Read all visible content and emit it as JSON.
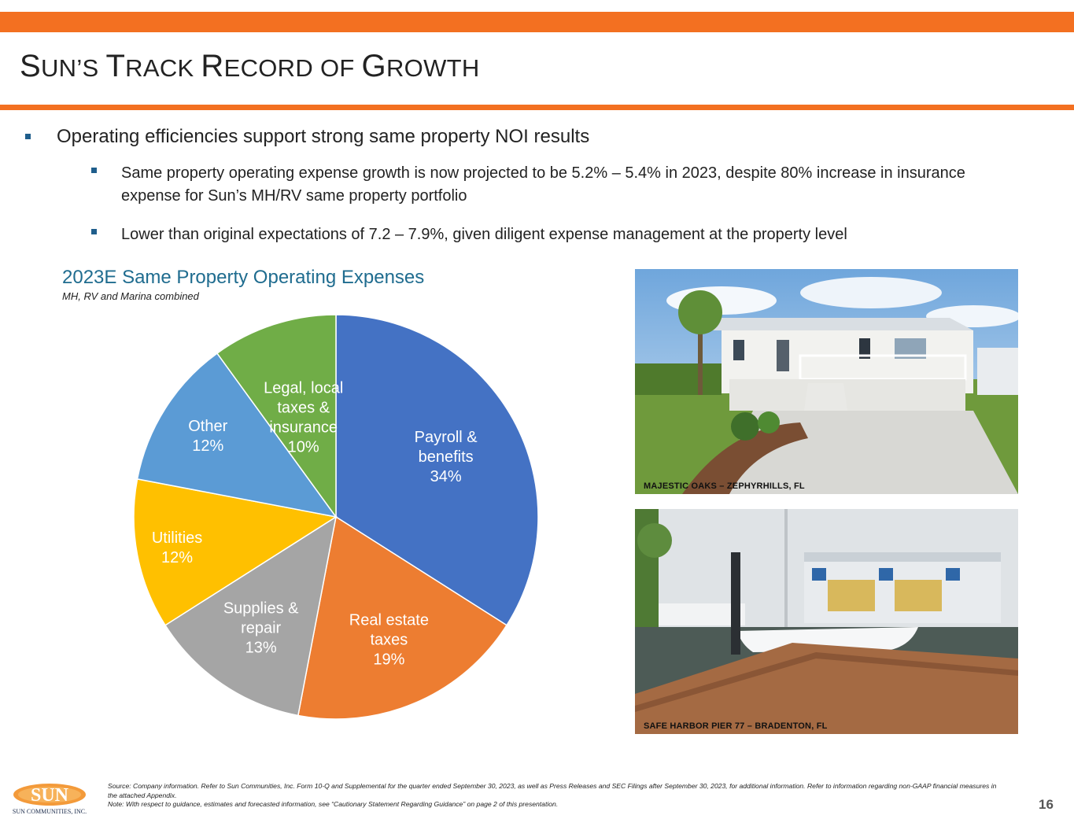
{
  "header": {
    "title_parts": [
      {
        "text": "S",
        "size": "cap"
      },
      {
        "text": "UN’S ",
        "size": "sm"
      },
      {
        "text": "T",
        "size": "cap"
      },
      {
        "text": "RACK ",
        "size": "sm"
      },
      {
        "text": "R",
        "size": "cap"
      },
      {
        "text": "ECORD OF ",
        "size": "sm"
      },
      {
        "text": "G",
        "size": "cap"
      },
      {
        "text": "ROWTH",
        "size": "sm"
      }
    ]
  },
  "bullets": {
    "main": "Operating efficiencies support strong same property NOI results",
    "sub1": "Same property operating expense growth is now projected to be 5.2% – 5.4% in 2023, despite 80% increase in insurance expense for Sun’s MH/RV same property portfolio",
    "sub2": "Lower than original expectations of 7.2 – 7.9%, given diligent expense management at the property level"
  },
  "chart_data": {
    "type": "pie",
    "title": "2023E Same Property Operating Expenses",
    "subtitle": "MH, RV and Marina combined",
    "slices": [
      {
        "label": [
          "Payroll &",
          "benefits",
          "34%"
        ],
        "value": 34,
        "color": "#4472c4"
      },
      {
        "label": [
          "Real estate",
          "taxes",
          "19%"
        ],
        "value": 19,
        "color": "#ed7d31"
      },
      {
        "label": [
          "Supplies &",
          "repair",
          "13%"
        ],
        "value": 13,
        "color": "#a5a5a5"
      },
      {
        "label": [
          "Utilities",
          "12%"
        ],
        "value": 12,
        "color": "#ffc000"
      },
      {
        "label": [
          "Other",
          "12%"
        ],
        "value": 12,
        "color": "#5b9bd5"
      },
      {
        "label": [
          "Legal, local",
          "taxes &",
          "insurance",
          "10%"
        ],
        "value": 10,
        "color": "#70ad47"
      }
    ]
  },
  "photos": {
    "photo1_caption": "MAJESTIC OAKS – ZEPHYRHILLS, FL",
    "photo2_caption": "SAFE HARBOR PIER 77 – BRADENTON, FL"
  },
  "footer": {
    "logo_text": "SUN",
    "logo_subtext": "SUN COMMUNITIES, INC.",
    "source": "Source: Company information. Refer to Sun Communities, Inc. Form 10-Q and Supplemental for the quarter ended September 30, 2023, as well as Press Releases and SEC Filings after September 30, 2023, for additional information. Refer to information regarding non-GAAP financial measures in the attached Appendix.",
    "note": "Note: With respect to guidance, estimates and forecasted information, see “Cautionary Statement Regarding Guidance” on page 2 of this presentation.",
    "page_number": "16"
  }
}
